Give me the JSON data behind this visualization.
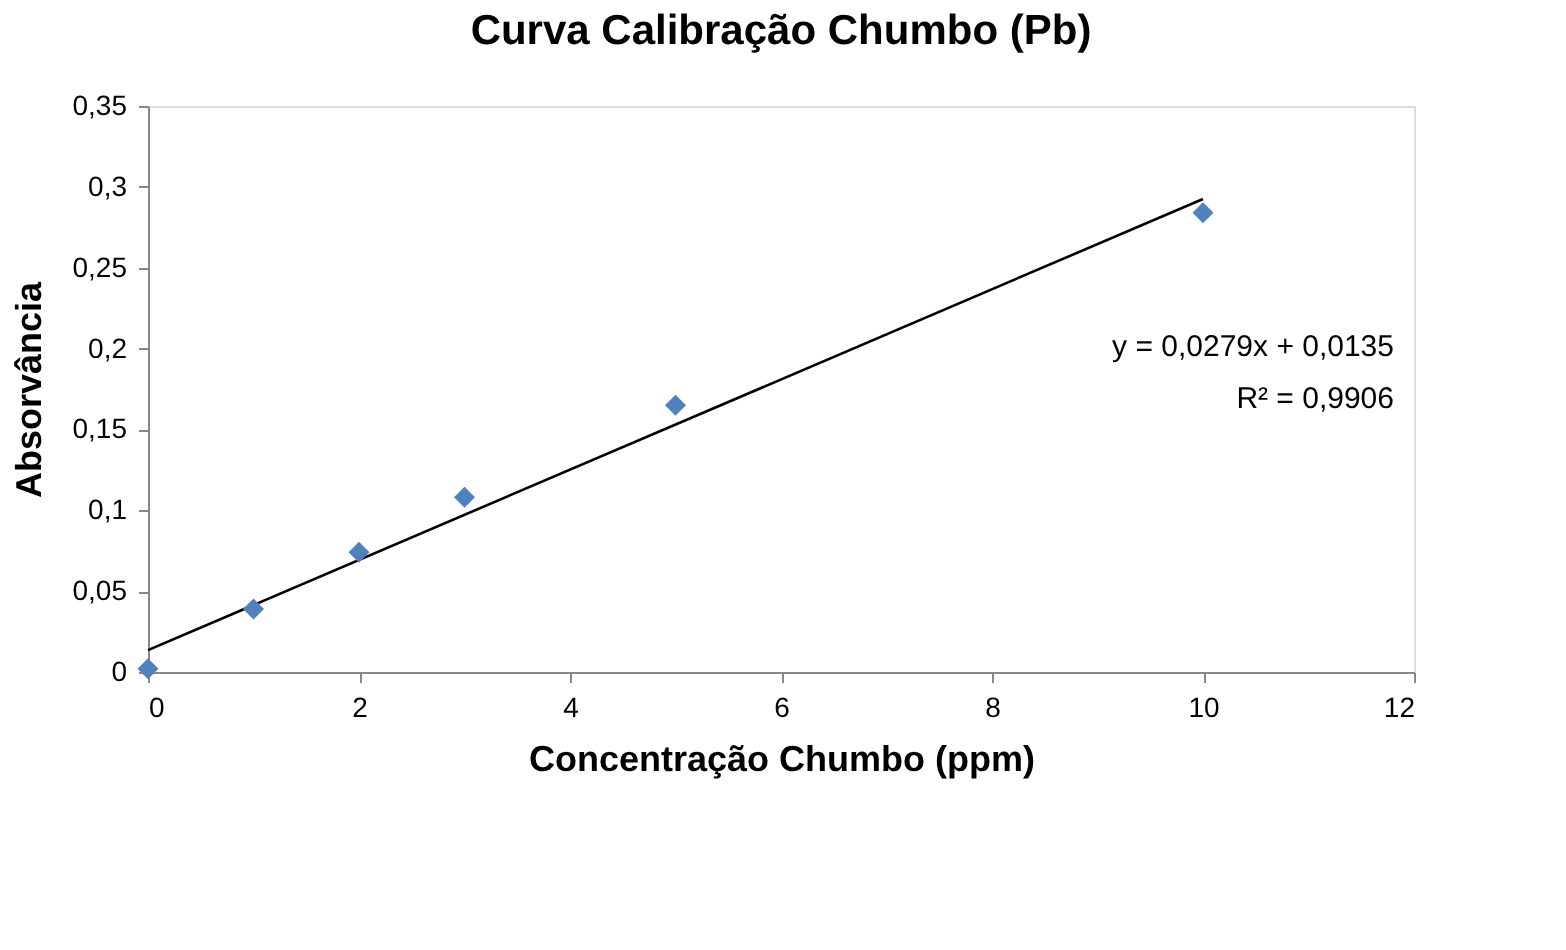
{
  "chart_data": {
    "type": "scatter",
    "title": "Curva Calibração Chumbo (Pb)",
    "xlabel": "Concentração Chumbo (ppm)",
    "ylabel": "Absorvância",
    "series": [
      {
        "color": "#4f81bd",
        "marker": "diamond",
        "x": [
          0,
          1,
          2,
          3,
          5,
          10
        ],
        "values": [
          0.002,
          0.039,
          0.074,
          0.108,
          0.165,
          0.284
        ]
      },
      {
        "type": "line",
        "color": "#000000",
        "line_style": "solid",
        "x": [
          0,
          10
        ],
        "values": [
          0.0135,
          0.2925
        ]
      }
    ],
    "xlim": [
      0,
      12
    ],
    "xticks": [
      0,
      2,
      4,
      6,
      8,
      10,
      12
    ],
    "ylim": [
      0,
      0.35
    ],
    "yticks": [
      0,
      {
        "value": 0.05,
        "label": "0,05"
      },
      {
        "value": 0.1,
        "label": "0,1"
      },
      {
        "value": 0.15,
        "label": "0,15"
      },
      {
        "value": 0.2,
        "label": "0,2"
      },
      {
        "value": 0.25,
        "label": "0,25"
      },
      {
        "value": 0.3,
        "label": "0,3"
      },
      {
        "value": 0.35,
        "label": "0,35"
      }
    ],
    "grid": false,
    "annotations": [
      "y = 0,0279x + 0,0135",
      "R² = 0,9906"
    ]
  }
}
